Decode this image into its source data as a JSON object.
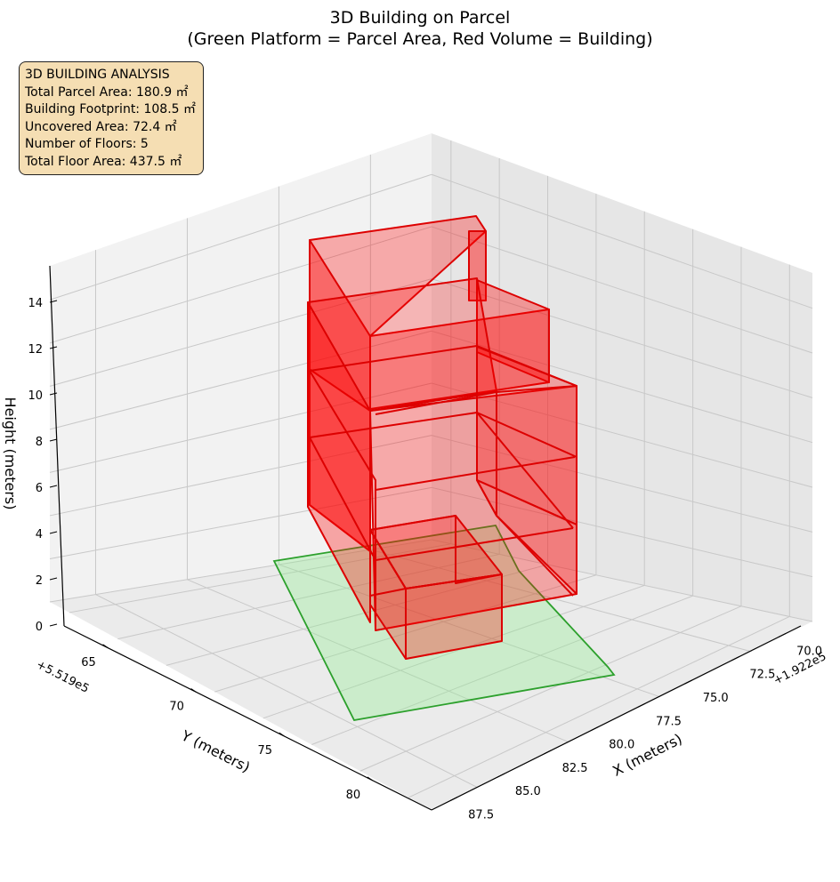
{
  "chart_data": {
    "type": "3d-polygons",
    "title": "3D Building on Parcel",
    "subtitle": "(Green Platform = Parcel Area, Red Volume = Building)",
    "x_axis": {
      "label": "X (meters)",
      "offset_text": "+1.922e5",
      "ticks": [
        "70.0",
        "72.5",
        "75.0",
        "77.5",
        "80.0",
        "82.5",
        "85.0",
        "87.5"
      ]
    },
    "y_axis": {
      "label": "Y (meters)",
      "offset_text": "+5.519e5",
      "ticks": [
        "65",
        "70",
        "75",
        "80"
      ]
    },
    "z_axis": {
      "label": "Height (meters)",
      "ticks": [
        "0",
        "2",
        "4",
        "6",
        "8",
        "10",
        "12",
        "14"
      ]
    },
    "grid": true,
    "series": [
      {
        "name": "Parcel Area",
        "kind": "platform",
        "color": "#2ca02c",
        "fill": "#90ee90",
        "floors": 0
      },
      {
        "name": "Building",
        "kind": "volume",
        "color": "#dd0000",
        "fill": "#ff0000",
        "floors": 5
      }
    ],
    "annotation": {
      "lines": [
        "3D BUILDING ANALYSIS",
        "Total Parcel Area: 180.9 ㎡",
        "Building Footprint: 108.5 ㎡",
        "Uncovered Area: 72.4 ㎡",
        "Number of Floors: 5",
        "Total Floor Area: 437.5 ㎡"
      ],
      "placement": "top-left"
    }
  }
}
